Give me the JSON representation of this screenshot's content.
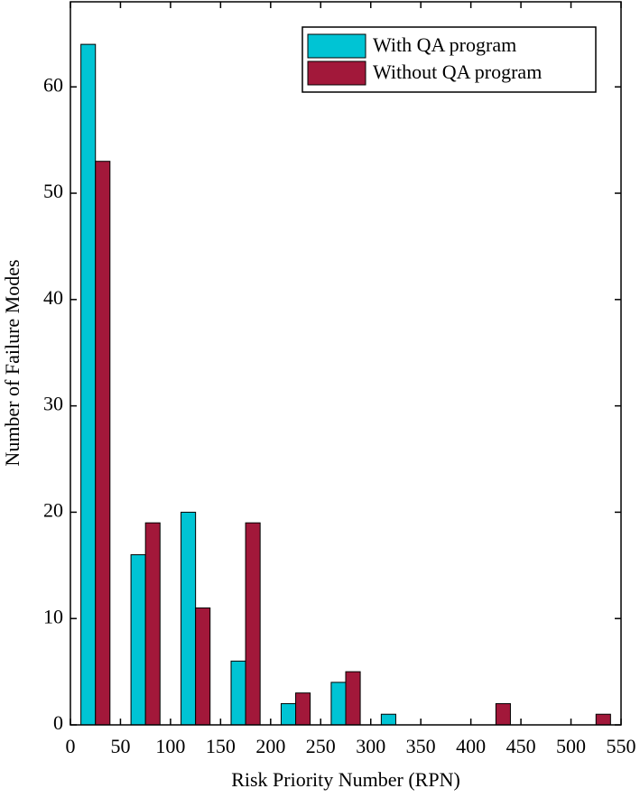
{
  "chart_data": {
    "type": "bar",
    "xlabel": "Risk Priority Number (RPN)",
    "ylabel": "Number of Failure Modes",
    "x": [
      25,
      75,
      125,
      175,
      225,
      275,
      325,
      375,
      425,
      475,
      525
    ],
    "series": [
      {
        "name": "With QA program",
        "color": "#00c4d4",
        "values": [
          64,
          16,
          20,
          6,
          2,
          4,
          1,
          0,
          0,
          0,
          0
        ]
      },
      {
        "name": "Without QA program",
        "color": "#a2183a",
        "values": [
          53,
          19,
          11,
          19,
          3,
          5,
          0,
          0,
          2,
          0,
          1
        ]
      }
    ],
    "xlim": [
      0,
      550
    ],
    "xticks": [
      0,
      50,
      100,
      150,
      200,
      250,
      300,
      350,
      400,
      450,
      500,
      550
    ],
    "ylim": [
      0,
      68
    ],
    "yticks": [
      0,
      10,
      20,
      30,
      40,
      50,
      60
    ],
    "legend": "upper right"
  }
}
